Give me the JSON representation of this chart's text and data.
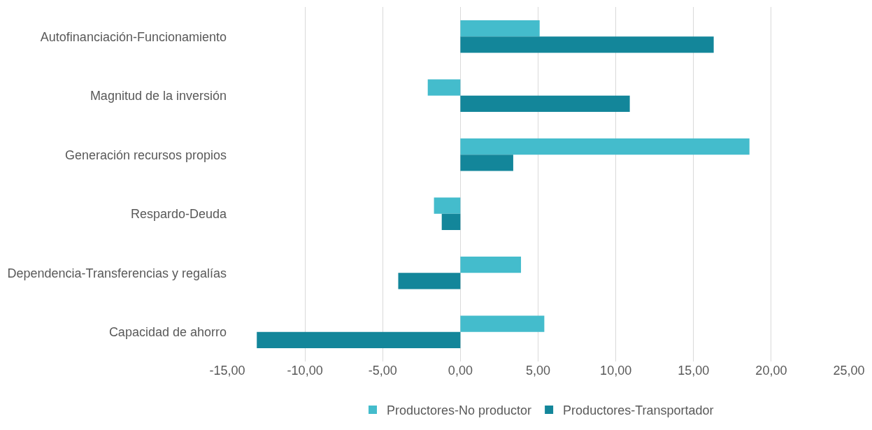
{
  "chart_data": {
    "type": "bar",
    "orientation": "horizontal",
    "categories": [
      "Autofinanciación-Funcionamiento",
      "Magnitud de la inversión",
      "Generación recursos propios",
      "Respardo-Deuda",
      "Dependencia-Transferencias y regalías",
      "Capacidad de ahorro"
    ],
    "series": [
      {
        "name": "Productores-No productor",
        "color": "#44bccc",
        "values": [
          5.1,
          -2.1,
          18.6,
          -1.7,
          3.9,
          5.4
        ]
      },
      {
        "name": "Productores-Transportador",
        "color": "#13869a",
        "values": [
          16.3,
          10.9,
          3.4,
          -1.2,
          -4.0,
          -13.1
        ]
      }
    ],
    "xlim": [
      -15,
      25
    ],
    "xticks": [
      {
        "value": -15,
        "label": "-15,00"
      },
      {
        "value": -10,
        "label": "-10,00"
      },
      {
        "value": -5,
        "label": "-5,00"
      },
      {
        "value": 0,
        "label": "0,00"
      },
      {
        "value": 5,
        "label": "5,00"
      },
      {
        "value": 10,
        "label": "10,00"
      },
      {
        "value": 15,
        "label": "15,00"
      },
      {
        "value": 20,
        "label": "20,00"
      },
      {
        "value": 25,
        "label": "25,00"
      }
    ],
    "grid": "x",
    "legend": "bottom"
  }
}
